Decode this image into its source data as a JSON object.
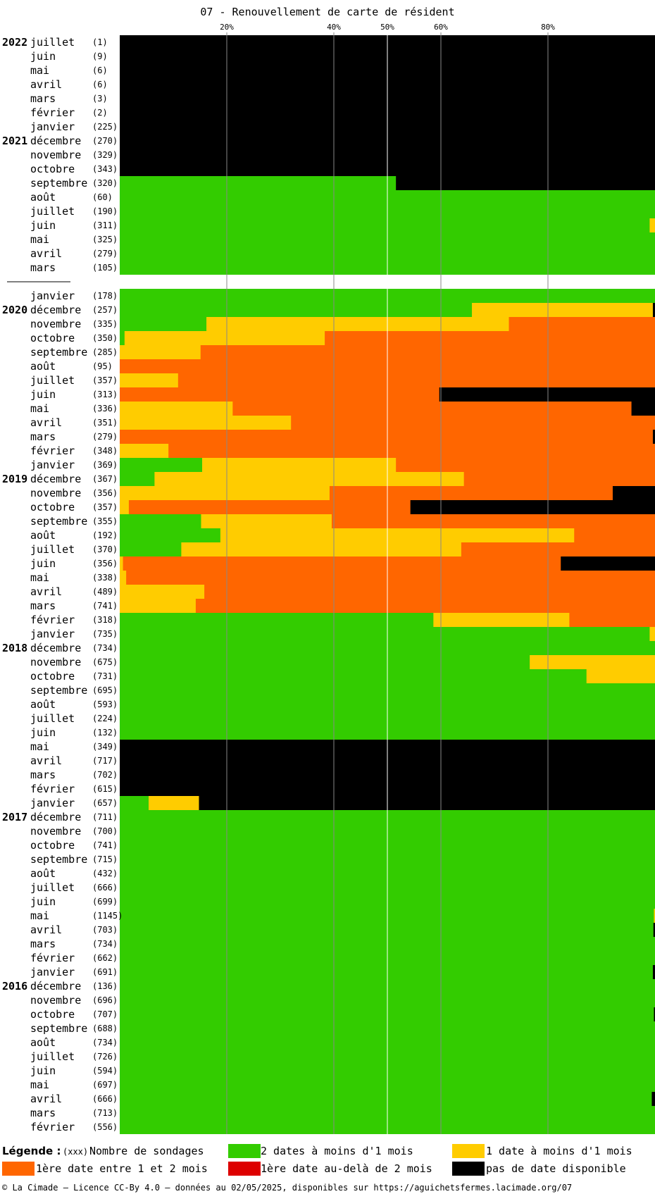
{
  "title": "07 - Renouvellement de carte de résident",
  "colors": {
    "c2": "#33cc00",
    "c1": "#ffcc00",
    "c12": "#ff6600",
    "c2p": "#dd0000",
    "none": "#000000"
  },
  "chart_data": {
    "type": "bar",
    "orientation": "horizontal-stacked-100",
    "title": "07 - Renouvellement de carte de résident",
    "xlim": [
      0,
      100
    ],
    "x_ticks": [
      "20%",
      "40%",
      "50%",
      "60%",
      "80%"
    ],
    "x_tick_values": [
      20,
      40,
      50,
      60,
      80
    ],
    "series_keys": [
      "c2",
      "c1",
      "c12",
      "c2p",
      "none"
    ],
    "rows": [
      {
        "year": "2022",
        "month": "juillet",
        "count": "(1)",
        "values": [
          0,
          0,
          0,
          0,
          100
        ]
      },
      {
        "year": "",
        "month": "juin",
        "count": "(9)",
        "values": [
          0,
          0,
          0,
          0,
          100
        ]
      },
      {
        "year": "",
        "month": "mai",
        "count": "(6)",
        "values": [
          0,
          0,
          0,
          0,
          100
        ]
      },
      {
        "year": "",
        "month": "avril",
        "count": "(6)",
        "values": [
          0,
          0,
          0,
          0,
          100
        ]
      },
      {
        "year": "",
        "month": "mars",
        "count": "(3)",
        "values": [
          0,
          0,
          0,
          0,
          100
        ]
      },
      {
        "year": "",
        "month": "février",
        "count": "(2)",
        "values": [
          0,
          0,
          0,
          0,
          100
        ]
      },
      {
        "year": "",
        "month": "janvier",
        "count": "(225)",
        "values": [
          0,
          0,
          0,
          0,
          100
        ]
      },
      {
        "year": "2021",
        "month": "décembre",
        "count": "(270)",
        "values": [
          0,
          0,
          0,
          0,
          100
        ]
      },
      {
        "year": "",
        "month": "novembre",
        "count": "(329)",
        "values": [
          0,
          0,
          0,
          0,
          100
        ]
      },
      {
        "year": "",
        "month": "octobre",
        "count": "(343)",
        "values": [
          0,
          0,
          0,
          0,
          100
        ]
      },
      {
        "year": "",
        "month": "septembre",
        "count": "(320)",
        "values": [
          51.6,
          0,
          0,
          0,
          48.4
        ]
      },
      {
        "year": "",
        "month": "août",
        "count": "(60)",
        "values": [
          100,
          0,
          0,
          0,
          0
        ]
      },
      {
        "year": "",
        "month": "juillet",
        "count": "(190)",
        "values": [
          100,
          0,
          0,
          0,
          0
        ]
      },
      {
        "year": "",
        "month": "juin",
        "count": "(311)",
        "values": [
          99,
          1,
          0,
          0,
          0
        ]
      },
      {
        "year": "",
        "month": "mai",
        "count": "(325)",
        "values": [
          100,
          0,
          0,
          0,
          0
        ]
      },
      {
        "year": "",
        "month": "avril",
        "count": "(279)",
        "values": [
          100,
          0,
          0,
          0,
          0
        ]
      },
      {
        "year": "",
        "month": "mars",
        "count": "(105)",
        "values": [
          100,
          0,
          0,
          0,
          0
        ]
      },
      {
        "gap": true
      },
      {
        "year": "",
        "month": "janvier",
        "count": "(178)",
        "values": [
          100,
          0,
          0,
          0,
          0
        ]
      },
      {
        "year": "2020",
        "month": "décembre",
        "count": "(257)",
        "values": [
          65.8,
          33.8,
          0,
          0,
          0.4
        ]
      },
      {
        "year": "",
        "month": "novembre",
        "count": "(335)",
        "values": [
          16.2,
          56.5,
          27.3,
          0,
          0
        ]
      },
      {
        "year": "",
        "month": "octobre",
        "count": "(350)",
        "values": [
          0.9,
          37.4,
          61.7,
          0,
          0
        ]
      },
      {
        "year": "",
        "month": "septembre",
        "count": "(285)",
        "values": [
          0,
          15.1,
          84.9,
          0,
          0
        ]
      },
      {
        "year": "",
        "month": "août",
        "count": "(95)",
        "values": [
          0,
          0,
          100,
          0,
          0
        ]
      },
      {
        "year": "",
        "month": "juillet",
        "count": "(357)",
        "values": [
          0,
          10.9,
          89.1,
          0,
          0
        ]
      },
      {
        "year": "",
        "month": "juin",
        "count": "(313)",
        "values": [
          0,
          0,
          59.7,
          0,
          40.3
        ]
      },
      {
        "year": "",
        "month": "mai",
        "count": "(336)",
        "values": [
          0,
          21.1,
          74.5,
          0,
          4.4
        ]
      },
      {
        "year": "",
        "month": "avril",
        "count": "(351)",
        "values": [
          0,
          32,
          68,
          0,
          0
        ]
      },
      {
        "year": "",
        "month": "mars",
        "count": "(279)",
        "values": [
          0,
          0,
          99.6,
          0,
          0.4
        ]
      },
      {
        "year": "",
        "month": "février",
        "count": "(348)",
        "values": [
          0,
          9.1,
          90.9,
          0,
          0
        ]
      },
      {
        "year": "",
        "month": "janvier",
        "count": "(369)",
        "values": [
          15.4,
          36.2,
          48.4,
          0,
          0
        ]
      },
      {
        "year": "2019",
        "month": "décembre",
        "count": "(367)",
        "values": [
          6.5,
          57.8,
          35.7,
          0,
          0
        ]
      },
      {
        "year": "",
        "month": "novembre",
        "count": "(356)",
        "values": [
          0,
          39.2,
          52.9,
          0,
          7.9
        ]
      },
      {
        "year": "",
        "month": "octobre",
        "count": "(357)",
        "values": [
          0,
          1.7,
          52.6,
          0,
          45.7
        ]
      },
      {
        "year": "",
        "month": "septembre",
        "count": "(355)",
        "values": [
          15.2,
          24.4,
          60.4,
          0,
          0
        ]
      },
      {
        "year": "",
        "month": "août",
        "count": "(192)",
        "values": [
          18.8,
          66.1,
          15.1,
          0,
          0
        ]
      },
      {
        "year": "",
        "month": "juillet",
        "count": "(370)",
        "values": [
          11.5,
          52.3,
          36.2,
          0,
          0
        ]
      },
      {
        "year": "",
        "month": "juin",
        "count": "(356)",
        "values": [
          0,
          0.6,
          81.8,
          0,
          17.6
        ]
      },
      {
        "year": "",
        "month": "mai",
        "count": "(338)",
        "values": [
          0,
          1.2,
          98.8,
          0,
          0
        ]
      },
      {
        "year": "",
        "month": "avril",
        "count": "(489)",
        "values": [
          0,
          15.8,
          84.2,
          0,
          0
        ]
      },
      {
        "year": "",
        "month": "mars",
        "count": "(741)",
        "values": [
          0,
          14.2,
          85.8,
          0,
          0
        ]
      },
      {
        "year": "",
        "month": "février",
        "count": "(318)",
        "values": [
          58.6,
          25.4,
          16,
          0,
          0
        ]
      },
      {
        "year": "",
        "month": "janvier",
        "count": "(735)",
        "values": [
          99,
          1,
          0,
          0,
          0
        ]
      },
      {
        "year": "2018",
        "month": "décembre",
        "count": "(734)",
        "values": [
          100,
          0,
          0,
          0,
          0
        ]
      },
      {
        "year": "",
        "month": "novembre",
        "count": "(675)",
        "values": [
          76.6,
          23.4,
          0,
          0,
          0
        ]
      },
      {
        "year": "",
        "month": "octobre",
        "count": "(731)",
        "values": [
          87.2,
          12.8,
          0,
          0,
          0
        ]
      },
      {
        "year": "",
        "month": "septembre",
        "count": "(695)",
        "values": [
          100,
          0,
          0,
          0,
          0
        ]
      },
      {
        "year": "",
        "month": "août",
        "count": "(593)",
        "values": [
          100,
          0,
          0,
          0,
          0
        ]
      },
      {
        "year": "",
        "month": "juillet",
        "count": "(224)",
        "values": [
          100,
          0,
          0,
          0,
          0
        ]
      },
      {
        "year": "",
        "month": "juin",
        "count": "(132)",
        "values": [
          100,
          0,
          0,
          0,
          0
        ]
      },
      {
        "year": "",
        "month": "mai",
        "count": "(349)",
        "values": [
          0,
          0,
          0,
          0,
          100
        ]
      },
      {
        "year": "",
        "month": "avril",
        "count": "(717)",
        "values": [
          0,
          0,
          0,
          0,
          100
        ]
      },
      {
        "year": "",
        "month": "mars",
        "count": "(702)",
        "values": [
          0,
          0,
          0,
          0,
          100
        ]
      },
      {
        "year": "",
        "month": "février",
        "count": "(615)",
        "values": [
          0,
          0,
          0,
          0,
          100
        ]
      },
      {
        "year": "",
        "month": "janvier",
        "count": "(657)",
        "values": [
          5.4,
          9.4,
          0,
          0,
          85.2
        ]
      },
      {
        "year": "2017",
        "month": "décembre",
        "count": "(711)",
        "values": [
          100,
          0,
          0,
          0,
          0
        ]
      },
      {
        "year": "",
        "month": "novembre",
        "count": "(700)",
        "values": [
          100,
          0,
          0,
          0,
          0
        ]
      },
      {
        "year": "",
        "month": "octobre",
        "count": "(741)",
        "values": [
          100,
          0,
          0,
          0,
          0
        ]
      },
      {
        "year": "",
        "month": "septembre",
        "count": "(715)",
        "values": [
          100,
          0,
          0,
          0,
          0
        ]
      },
      {
        "year": "",
        "month": "août",
        "count": "(432)",
        "values": [
          100,
          0,
          0,
          0,
          0
        ]
      },
      {
        "year": "",
        "month": "juillet",
        "count": "(666)",
        "values": [
          100,
          0,
          0,
          0,
          0
        ]
      },
      {
        "year": "",
        "month": "juin",
        "count": "(699)",
        "values": [
          100,
          0,
          0,
          0,
          0
        ]
      },
      {
        "year": "",
        "month": "mai",
        "count": "(1145)",
        "values": [
          99.8,
          0.2,
          0,
          0,
          0
        ]
      },
      {
        "year": "",
        "month": "avril",
        "count": "(703)",
        "values": [
          99.7,
          0,
          0,
          0,
          0.3
        ]
      },
      {
        "year": "",
        "month": "mars",
        "count": "(734)",
        "values": [
          100,
          0,
          0,
          0,
          0
        ]
      },
      {
        "year": "",
        "month": "février",
        "count": "(662)",
        "values": [
          100,
          0,
          0,
          0,
          0
        ]
      },
      {
        "year": "",
        "month": "janvier",
        "count": "(691)",
        "values": [
          99.6,
          0,
          0,
          0,
          0.4
        ]
      },
      {
        "year": "2016",
        "month": "décembre",
        "count": "(136)",
        "values": [
          100,
          0,
          0,
          0,
          0
        ]
      },
      {
        "year": "",
        "month": "novembre",
        "count": "(696)",
        "values": [
          100,
          0,
          0,
          0,
          0
        ]
      },
      {
        "year": "",
        "month": "octobre",
        "count": "(707)",
        "values": [
          99.8,
          0,
          0,
          0,
          0.2
        ]
      },
      {
        "year": "",
        "month": "septembre",
        "count": "(688)",
        "values": [
          100,
          0,
          0,
          0,
          0
        ]
      },
      {
        "year": "",
        "month": "août",
        "count": "(734)",
        "values": [
          100,
          0,
          0,
          0,
          0
        ]
      },
      {
        "year": "",
        "month": "juillet",
        "count": "(726)",
        "values": [
          100,
          0,
          0,
          0,
          0
        ]
      },
      {
        "year": "",
        "month": "juin",
        "count": "(594)",
        "values": [
          100,
          0,
          0,
          0,
          0
        ]
      },
      {
        "year": "",
        "month": "mai",
        "count": "(697)",
        "values": [
          100,
          0,
          0,
          0,
          0
        ]
      },
      {
        "year": "",
        "month": "avril",
        "count": "(666)",
        "values": [
          99.4,
          0,
          0,
          0,
          0.6
        ]
      },
      {
        "year": "",
        "month": "mars",
        "count": "(713)",
        "values": [
          100,
          0,
          0,
          0,
          0
        ]
      },
      {
        "year": "",
        "month": "février",
        "count": "(556)",
        "values": [
          100,
          0,
          0,
          0,
          0
        ]
      }
    ]
  },
  "legend": {
    "title": "Légende :",
    "xxx": "(xxx)",
    "count_text": "Nombre de sondages",
    "c2": "2 dates à moins d'1 mois",
    "c1": "1 date à moins d'1 mois",
    "c12": "1ère date entre 1 et 2 mois",
    "c2p": "1ère date au-delà de 2 mois",
    "none": "pas de date disponible"
  },
  "footer": "© La Cimade — Licence CC-By 4.0 — données au 02/05/2025, disponibles sur https://aguichetsfermes.lacimade.org/07"
}
